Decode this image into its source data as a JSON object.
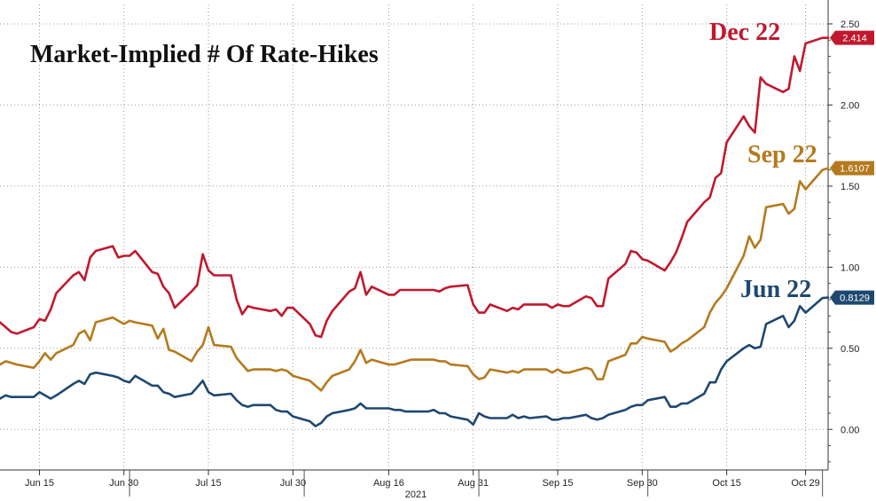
{
  "chart_data": {
    "type": "line",
    "title": "Market-Implied # Of Rate-Hikes",
    "xlabel": "2021",
    "ylabel": "",
    "x_start": "2021-06-08",
    "x_end": "2021-11-02",
    "ylim": [
      -0.25,
      2.62
    ],
    "y_ticks": [
      "0.00",
      "0.50",
      "1.00",
      "1.50",
      "2.00",
      "2.50"
    ],
    "x_ticks": [
      {
        "label": "Jun 15",
        "date": "2021-06-15"
      },
      {
        "label": "Jun 30",
        "date": "2021-06-30"
      },
      {
        "label": "Jul 15",
        "date": "2021-07-15"
      },
      {
        "label": "Jul 30",
        "date": "2021-07-30"
      },
      {
        "label": "Aug 16",
        "date": "2021-08-16"
      },
      {
        "label": "Aug 31",
        "date": "2021-08-31"
      },
      {
        "label": "Sep 15",
        "date": "2021-09-15"
      },
      {
        "label": "Sep 30",
        "date": "2021-09-30"
      },
      {
        "label": "Oct 15",
        "date": "2021-10-15"
      },
      {
        "label": "Oct 29",
        "date": "2021-10-29"
      }
    ],
    "grid": true,
    "y_axis_side": "right",
    "dates": [
      "2021-06-08",
      "2021-06-09",
      "2021-06-10",
      "2021-06-11",
      "2021-06-14",
      "2021-06-15",
      "2021-06-16",
      "2021-06-17",
      "2021-06-18",
      "2021-06-21",
      "2021-06-22",
      "2021-06-23",
      "2021-06-24",
      "2021-06-25",
      "2021-06-28",
      "2021-06-29",
      "2021-06-30",
      "2021-07-01",
      "2021-07-02",
      "2021-07-05",
      "2021-07-06",
      "2021-07-07",
      "2021-07-08",
      "2021-07-09",
      "2021-07-12",
      "2021-07-13",
      "2021-07-14",
      "2021-07-15",
      "2021-07-16",
      "2021-07-19",
      "2021-07-20",
      "2021-07-21",
      "2021-07-22",
      "2021-07-23",
      "2021-07-26",
      "2021-07-27",
      "2021-07-28",
      "2021-07-29",
      "2021-07-30",
      "2021-08-02",
      "2021-08-03",
      "2021-08-04",
      "2021-08-05",
      "2021-08-06",
      "2021-08-09",
      "2021-08-10",
      "2021-08-11",
      "2021-08-12",
      "2021-08-13",
      "2021-08-16",
      "2021-08-17",
      "2021-08-18",
      "2021-08-19",
      "2021-08-20",
      "2021-08-23",
      "2021-08-24",
      "2021-08-25",
      "2021-08-26",
      "2021-08-27",
      "2021-08-30",
      "2021-08-31",
      "2021-09-01",
      "2021-09-02",
      "2021-09-03",
      "2021-09-06",
      "2021-09-07",
      "2021-09-08",
      "2021-09-09",
      "2021-09-10",
      "2021-09-13",
      "2021-09-14",
      "2021-09-15",
      "2021-09-16",
      "2021-09-17",
      "2021-09-20",
      "2021-09-21",
      "2021-09-22",
      "2021-09-23",
      "2021-09-24",
      "2021-09-27",
      "2021-09-28",
      "2021-09-29",
      "2021-09-30",
      "2021-10-01",
      "2021-10-04",
      "2021-10-05",
      "2021-10-06",
      "2021-10-07",
      "2021-10-08",
      "2021-10-11",
      "2021-10-12",
      "2021-10-13",
      "2021-10-14",
      "2021-10-15",
      "2021-10-18",
      "2021-10-19",
      "2021-10-20",
      "2021-10-21",
      "2021-10-22",
      "2021-10-25",
      "2021-10-26",
      "2021-10-27",
      "2021-10-28",
      "2021-10-29",
      "2021-11-01",
      "2021-11-02"
    ],
    "series": [
      {
        "name": "Dec 22",
        "color": "#c0192f",
        "last_value": "2.414",
        "values": [
          0.66,
          0.63,
          0.6,
          0.59,
          0.63,
          0.68,
          0.67,
          0.74,
          0.84,
          0.95,
          0.97,
          0.92,
          1.06,
          1.1,
          1.13,
          1.06,
          1.07,
          1.07,
          1.1,
          0.97,
          0.96,
          0.88,
          0.84,
          0.75,
          0.85,
          0.89,
          1.08,
          0.98,
          0.95,
          0.95,
          0.8,
          0.71,
          0.76,
          0.75,
          0.73,
          0.74,
          0.7,
          0.75,
          0.75,
          0.65,
          0.58,
          0.57,
          0.67,
          0.73,
          0.85,
          0.87,
          0.97,
          0.83,
          0.88,
          0.83,
          0.83,
          0.86,
          0.86,
          0.86,
          0.86,
          0.86,
          0.85,
          0.87,
          0.88,
          0.89,
          0.77,
          0.72,
          0.72,
          0.77,
          0.73,
          0.75,
          0.74,
          0.77,
          0.77,
          0.77,
          0.75,
          0.77,
          0.76,
          0.76,
          0.82,
          0.81,
          0.76,
          0.76,
          0.93,
          1.02,
          1.1,
          1.09,
          1.05,
          1.04,
          0.98,
          1.03,
          1.09,
          1.18,
          1.28,
          1.4,
          1.43,
          1.55,
          1.58,
          1.77,
          1.93,
          1.87,
          1.83,
          2.17,
          2.13,
          2.08,
          2.1,
          2.3,
          2.21,
          2.38,
          2.414,
          2.414
        ]
      },
      {
        "name": "Sep 22",
        "color": "#b57a1e",
        "last_value": "1.6107",
        "values": [
          0.4,
          0.42,
          0.41,
          0.4,
          0.38,
          0.42,
          0.47,
          0.43,
          0.47,
          0.52,
          0.59,
          0.61,
          0.55,
          0.66,
          0.69,
          0.67,
          0.65,
          0.67,
          0.66,
          0.64,
          0.56,
          0.62,
          0.49,
          0.48,
          0.42,
          0.48,
          0.52,
          0.63,
          0.52,
          0.51,
          0.44,
          0.4,
          0.36,
          0.37,
          0.37,
          0.36,
          0.37,
          0.36,
          0.33,
          0.3,
          0.27,
          0.24,
          0.29,
          0.33,
          0.37,
          0.42,
          0.49,
          0.41,
          0.43,
          0.4,
          0.4,
          0.41,
          0.42,
          0.43,
          0.43,
          0.43,
          0.42,
          0.42,
          0.4,
          0.39,
          0.34,
          0.31,
          0.32,
          0.37,
          0.35,
          0.36,
          0.35,
          0.37,
          0.37,
          0.37,
          0.35,
          0.37,
          0.35,
          0.35,
          0.38,
          0.37,
          0.31,
          0.31,
          0.42,
          0.46,
          0.53,
          0.53,
          0.57,
          0.56,
          0.54,
          0.48,
          0.5,
          0.53,
          0.55,
          0.63,
          0.72,
          0.78,
          0.82,
          0.87,
          1.07,
          1.19,
          1.12,
          1.17,
          1.37,
          1.39,
          1.33,
          1.36,
          1.53,
          1.48,
          1.6,
          1.6107
        ]
      },
      {
        "name": "Jun 22",
        "color": "#1f4870",
        "last_value": "0.8129",
        "values": [
          0.19,
          0.21,
          0.2,
          0.2,
          0.2,
          0.23,
          0.21,
          0.19,
          0.21,
          0.28,
          0.3,
          0.28,
          0.34,
          0.35,
          0.33,
          0.32,
          0.3,
          0.29,
          0.33,
          0.27,
          0.27,
          0.23,
          0.22,
          0.2,
          0.22,
          0.26,
          0.3,
          0.23,
          0.21,
          0.22,
          0.18,
          0.15,
          0.14,
          0.15,
          0.15,
          0.12,
          0.11,
          0.11,
          0.08,
          0.05,
          0.02,
          0.04,
          0.08,
          0.1,
          0.12,
          0.13,
          0.16,
          0.13,
          0.13,
          0.13,
          0.12,
          0.12,
          0.11,
          0.11,
          0.11,
          0.12,
          0.1,
          0.1,
          0.08,
          0.06,
          0.03,
          0.1,
          0.08,
          0.07,
          0.07,
          0.09,
          0.07,
          0.08,
          0.07,
          0.08,
          0.06,
          0.06,
          0.07,
          0.07,
          0.09,
          0.07,
          0.06,
          0.07,
          0.09,
          0.12,
          0.14,
          0.15,
          0.15,
          0.18,
          0.2,
          0.14,
          0.14,
          0.16,
          0.16,
          0.22,
          0.29,
          0.29,
          0.37,
          0.42,
          0.5,
          0.52,
          0.5,
          0.51,
          0.65,
          0.7,
          0.63,
          0.67,
          0.76,
          0.72,
          0.81,
          0.8129
        ]
      }
    ]
  }
}
